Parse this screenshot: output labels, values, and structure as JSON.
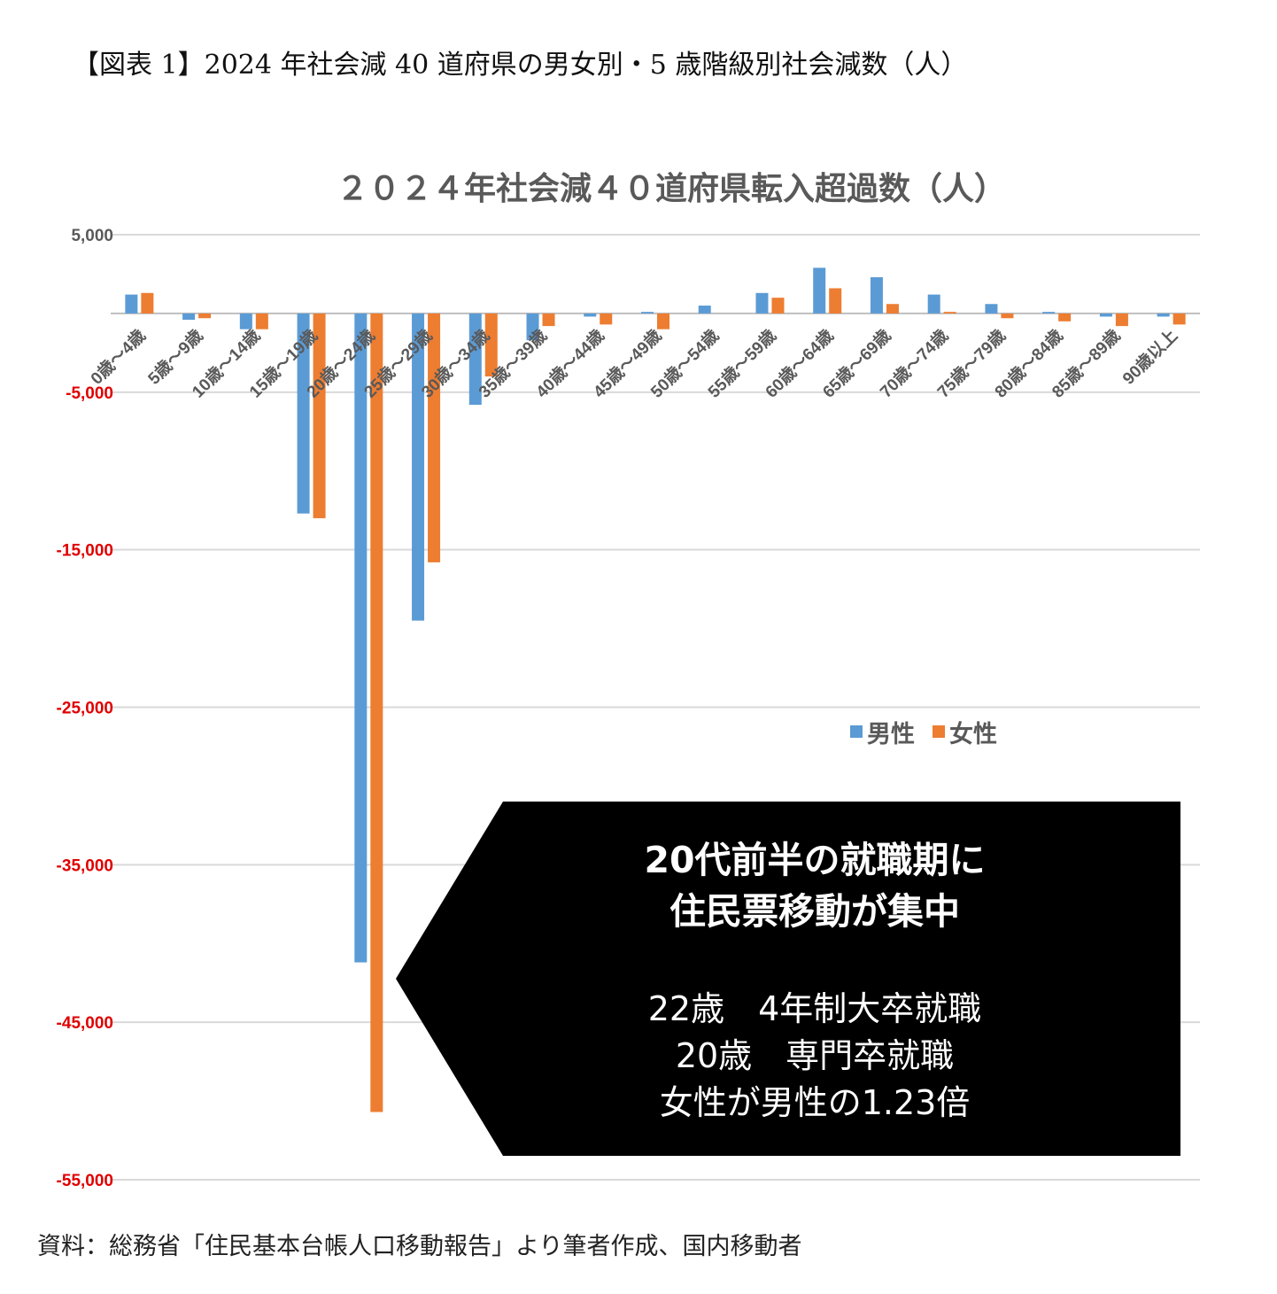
{
  "caption": "【図表 1】2024 年社会減 40 道府県の男女別・5 歳階級別社会減数（人）",
  "source": "資料：総務省「住民基本台帳人口移動報告」より筆者作成、国内移動者",
  "colors": {
    "male": "#5b9bd5",
    "female": "#ed7d31",
    "grid": "#d9d9d9",
    "positive_tick": "#595959",
    "negative_tick": "#e00000",
    "callout_bg": "#000000"
  },
  "chart_data": {
    "type": "bar",
    "title": "２０２４年社会減４０道府県転入超過数（人）",
    "categories": [
      "0歳～4歳",
      "5歳～9歳",
      "10歳～14歳",
      "15歳～19歳",
      "20歳～24歳",
      "25歳～29歳",
      "30歳～34歳",
      "35歳～39歳",
      "40歳～44歳",
      "45歳～49歳",
      "50歳～54歳",
      "55歳～59歳",
      "60歳～64歳",
      "65歳～69歳",
      "70歳～74歳",
      "75歳～79歳",
      "80歳～84歳",
      "85歳～89歳",
      "90歳以上"
    ],
    "series": [
      {
        "name": "男性",
        "color": "#5b9bd5",
        "values": [
          1200,
          -400,
          -1000,
          -12700,
          -41200,
          -19500,
          -5800,
          -1700,
          -200,
          100,
          500,
          1300,
          2900,
          2300,
          1200,
          600,
          100,
          -200,
          -200
        ]
      },
      {
        "name": "女性",
        "color": "#ed7d31",
        "values": [
          1300,
          -300,
          -1000,
          -13000,
          -50700,
          -15800,
          -4000,
          -800,
          -700,
          -1000,
          0,
          1000,
          1600,
          600,
          100,
          -300,
          -500,
          -800,
          -700
        ]
      }
    ],
    "yticks": [
      "5,000",
      "-5,000",
      "-15,000",
      "-25,000",
      "-35,000",
      "-45,000",
      "-55,000"
    ],
    "ytick_values": [
      5000,
      -5000,
      -15000,
      -25000,
      -35000,
      -45000,
      -55000
    ],
    "ylim": [
      -55000,
      5000
    ],
    "grid": true,
    "legend_position": "right"
  },
  "callout": {
    "line1": "20代前半の就職期に",
    "line2": "住民票移動が集中",
    "line3": "22歳　4年制大卒就職",
    "line4": "20歳　専門卒就職",
    "line5": "女性が男性の1.23倍"
  }
}
